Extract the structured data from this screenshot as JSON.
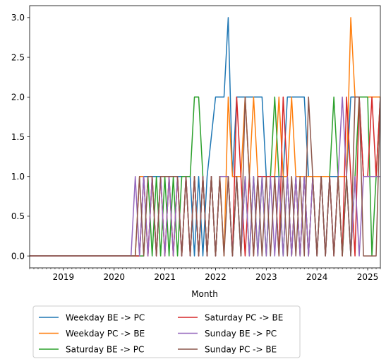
{
  "chart_data": {
    "type": "line",
    "title": "",
    "xlabel": "Month",
    "ylabel": "",
    "xlim": [
      "2018-05",
      "2025-04"
    ],
    "ylim": [
      -0.15,
      3.15
    ],
    "x_ticks": [
      {
        "date": "2019-01",
        "label": "2019"
      },
      {
        "date": "2020-01",
        "label": "2020"
      },
      {
        "date": "2021-01",
        "label": "2021"
      },
      {
        "date": "2022-01",
        "label": "2022"
      },
      {
        "date": "2023-01",
        "label": "2023"
      },
      {
        "date": "2024-01",
        "label": "2024"
      },
      {
        "date": "2025-01",
        "label": "2025"
      }
    ],
    "y_ticks": [
      {
        "value": 0.0,
        "label": "0.0"
      },
      {
        "value": 0.5,
        "label": "0.5"
      },
      {
        "value": 1.0,
        "label": "1.0"
      },
      {
        "value": 1.5,
        "label": "1.5"
      },
      {
        "value": 2.0,
        "label": "2.0"
      },
      {
        "value": 2.5,
        "label": "2.5"
      },
      {
        "value": 3.0,
        "label": "3.0"
      }
    ],
    "grid": false,
    "legend": {
      "position": "below",
      "columns": 2
    },
    "series": [
      {
        "name": "Weekday BE -> PC",
        "color": "#1f77b4",
        "points": [
          [
            "2018-05",
            0
          ],
          [
            "2020-07",
            0
          ],
          [
            "2020-08",
            1
          ],
          [
            "2021-07",
            1
          ],
          [
            "2021-08",
            0
          ],
          [
            "2021-09",
            1
          ],
          [
            "2021-10",
            0
          ],
          [
            "2021-11",
            1
          ],
          [
            "2022-01",
            2
          ],
          [
            "2022-03",
            2
          ],
          [
            "2022-04",
            3
          ],
          [
            "2022-05",
            1
          ],
          [
            "2022-06",
            2
          ],
          [
            "2022-12",
            2
          ],
          [
            "2023-01",
            1
          ],
          [
            "2023-05",
            1
          ],
          [
            "2023-06",
            2
          ],
          [
            "2023-10",
            2
          ],
          [
            "2023-11",
            1
          ],
          [
            "2024-08",
            1
          ],
          [
            "2024-09",
            2
          ],
          [
            "2024-11",
            2
          ],
          [
            "2024-12",
            1
          ],
          [
            "2025-04",
            1
          ]
        ]
      },
      {
        "name": "Weekday PC -> BE",
        "color": "#ff7f0e",
        "points": [
          [
            "2018-05",
            0
          ],
          [
            "2020-06",
            0
          ],
          [
            "2020-07",
            1
          ],
          [
            "2020-08",
            1
          ],
          [
            "2020-09",
            0
          ],
          [
            "2020-10",
            1
          ],
          [
            "2020-11",
            0
          ],
          [
            "2020-12",
            1
          ],
          [
            "2021-01",
            0
          ],
          [
            "2021-02",
            1
          ],
          [
            "2021-03",
            0
          ],
          [
            "2021-04",
            1
          ],
          [
            "2021-05",
            0
          ],
          [
            "2021-06",
            1
          ],
          [
            "2021-07",
            0
          ],
          [
            "2021-08",
            1
          ],
          [
            "2021-09",
            0
          ],
          [
            "2021-10",
            1
          ],
          [
            "2021-11",
            0
          ],
          [
            "2021-12",
            1
          ],
          [
            "2022-01",
            0
          ],
          [
            "2022-02",
            1
          ],
          [
            "2022-03",
            0
          ],
          [
            "2022-04",
            2
          ],
          [
            "2022-05",
            1
          ],
          [
            "2022-07",
            1
          ],
          [
            "2022-08",
            2
          ],
          [
            "2022-09",
            1
          ],
          [
            "2022-10",
            2
          ],
          [
            "2022-11",
            1
          ],
          [
            "2023-03",
            1
          ],
          [
            "2023-04",
            2
          ],
          [
            "2023-05",
            1
          ],
          [
            "2023-06",
            1
          ],
          [
            "2023-07",
            2
          ],
          [
            "2023-08",
            1
          ],
          [
            "2024-04",
            1
          ],
          [
            "2024-05",
            0
          ],
          [
            "2024-06",
            1
          ],
          [
            "2024-08",
            1
          ],
          [
            "2024-09",
            3
          ],
          [
            "2024-10",
            2
          ],
          [
            "2025-04",
            2
          ]
        ]
      },
      {
        "name": "Saturday BE -> PC",
        "color": "#2ca02c",
        "points": [
          [
            "2018-05",
            0
          ],
          [
            "2020-08",
            0
          ],
          [
            "2020-09",
            1
          ],
          [
            "2020-10",
            0
          ],
          [
            "2020-11",
            1
          ],
          [
            "2020-12",
            0
          ],
          [
            "2021-01",
            1
          ],
          [
            "2021-02",
            0
          ],
          [
            "2021-03",
            1
          ],
          [
            "2021-04",
            0
          ],
          [
            "2021-05",
            1
          ],
          [
            "2021-07",
            1
          ],
          [
            "2021-08",
            2
          ],
          [
            "2021-09",
            2
          ],
          [
            "2021-10",
            1
          ],
          [
            "2021-11",
            0
          ],
          [
            "2021-12",
            1
          ],
          [
            "2022-01",
            0
          ],
          [
            "2022-02",
            1
          ],
          [
            "2022-04",
            1
          ],
          [
            "2022-05",
            0
          ],
          [
            "2022-06",
            1
          ],
          [
            "2022-07",
            0
          ],
          [
            "2022-08",
            1
          ],
          [
            "2022-09",
            0
          ],
          [
            "2022-10",
            1
          ],
          [
            "2022-11",
            0
          ],
          [
            "2022-12",
            1
          ],
          [
            "2023-01",
            0
          ],
          [
            "2023-02",
            1
          ],
          [
            "2023-03",
            2
          ],
          [
            "2023-04",
            1
          ],
          [
            "2023-05",
            0
          ],
          [
            "2023-06",
            1
          ],
          [
            "2023-07",
            0
          ],
          [
            "2023-08",
            1
          ],
          [
            "2023-09",
            0
          ],
          [
            "2023-10",
            1
          ],
          [
            "2023-11",
            0
          ],
          [
            "2023-12",
            1
          ],
          [
            "2024-01",
            0
          ],
          [
            "2024-02",
            1
          ],
          [
            "2024-03",
            0
          ],
          [
            "2024-04",
            1
          ],
          [
            "2024-05",
            2
          ],
          [
            "2024-06",
            1
          ],
          [
            "2024-07",
            0
          ],
          [
            "2024-08",
            1
          ],
          [
            "2024-09",
            0
          ],
          [
            "2024-10",
            1
          ],
          [
            "2024-11",
            2
          ],
          [
            "2025-01",
            2
          ],
          [
            "2025-02",
            0
          ],
          [
            "2025-03",
            1
          ],
          [
            "2025-04",
            2
          ]
        ]
      },
      {
        "name": "Saturday PC -> BE",
        "color": "#d62728",
        "points": [
          [
            "2018-05",
            0
          ],
          [
            "2020-07",
            0
          ],
          [
            "2020-08",
            1
          ],
          [
            "2020-09",
            0
          ],
          [
            "2020-10",
            1
          ],
          [
            "2020-11",
            0
          ],
          [
            "2020-12",
            1
          ],
          [
            "2021-01",
            0
          ],
          [
            "2021-02",
            1
          ],
          [
            "2021-03",
            0
          ],
          [
            "2021-04",
            1
          ],
          [
            "2021-05",
            0
          ],
          [
            "2021-06",
            1
          ],
          [
            "2021-07",
            0
          ],
          [
            "2021-08",
            1
          ],
          [
            "2021-09",
            0
          ],
          [
            "2021-10",
            1
          ],
          [
            "2021-11",
            0
          ],
          [
            "2021-12",
            1
          ],
          [
            "2022-01",
            0
          ],
          [
            "2022-02",
            1
          ],
          [
            "2022-04",
            1
          ],
          [
            "2022-05",
            0
          ],
          [
            "2022-06",
            2
          ],
          [
            "2022-07",
            1
          ],
          [
            "2022-08",
            0
          ],
          [
            "2022-09",
            1
          ],
          [
            "2022-10",
            0
          ],
          [
            "2022-11",
            1
          ],
          [
            "2023-03",
            1
          ],
          [
            "2023-04",
            0
          ],
          [
            "2023-05",
            2
          ],
          [
            "2023-06",
            1
          ],
          [
            "2023-07",
            0
          ],
          [
            "2023-08",
            1
          ],
          [
            "2023-09",
            0
          ],
          [
            "2023-10",
            1
          ],
          [
            "2023-11",
            0
          ],
          [
            "2023-12",
            1
          ],
          [
            "2024-01",
            0
          ],
          [
            "2024-02",
            1
          ],
          [
            "2024-03",
            0
          ],
          [
            "2024-04",
            1
          ],
          [
            "2024-05",
            0
          ],
          [
            "2024-06",
            1
          ],
          [
            "2024-07",
            0
          ],
          [
            "2024-08",
            2
          ],
          [
            "2024-09",
            1
          ],
          [
            "2024-10",
            0
          ],
          [
            "2024-11",
            2
          ],
          [
            "2024-12",
            1
          ],
          [
            "2025-01",
            1
          ],
          [
            "2025-02",
            2
          ],
          [
            "2025-03",
            1
          ],
          [
            "2025-04",
            2
          ]
        ]
      },
      {
        "name": "Sunday BE -> PC",
        "color": "#9467bd",
        "points": [
          [
            "2018-05",
            0
          ],
          [
            "2020-05",
            0
          ],
          [
            "2020-06",
            1
          ],
          [
            "2020-07",
            0
          ],
          [
            "2020-08",
            1
          ],
          [
            "2020-09",
            0
          ],
          [
            "2020-10",
            1
          ],
          [
            "2020-11",
            0
          ],
          [
            "2020-12",
            1
          ],
          [
            "2021-01",
            0
          ],
          [
            "2021-02",
            1
          ],
          [
            "2021-03",
            0
          ],
          [
            "2021-04",
            1
          ],
          [
            "2021-05",
            0
          ],
          [
            "2021-06",
            1
          ],
          [
            "2021-07",
            0
          ],
          [
            "2021-08",
            1
          ],
          [
            "2021-09",
            0
          ],
          [
            "2021-10",
            1
          ],
          [
            "2021-11",
            0
          ],
          [
            "2021-12",
            1
          ],
          [
            "2022-01",
            0
          ],
          [
            "2022-02",
            1
          ],
          [
            "2022-04",
            1
          ],
          [
            "2022-05",
            0
          ],
          [
            "2022-06",
            1
          ],
          [
            "2022-07",
            0
          ],
          [
            "2022-08",
            1
          ],
          [
            "2022-09",
            0
          ],
          [
            "2022-10",
            1
          ],
          [
            "2022-11",
            0
          ],
          [
            "2022-12",
            1
          ],
          [
            "2023-01",
            0
          ],
          [
            "2023-02",
            1
          ],
          [
            "2023-03",
            0
          ],
          [
            "2023-04",
            1
          ],
          [
            "2023-05",
            0
          ],
          [
            "2023-06",
            1
          ],
          [
            "2023-07",
            0
          ],
          [
            "2023-08",
            1
          ],
          [
            "2023-09",
            0
          ],
          [
            "2023-10",
            1
          ],
          [
            "2023-11",
            0
          ],
          [
            "2023-12",
            1
          ],
          [
            "2024-01",
            0
          ],
          [
            "2024-02",
            1
          ],
          [
            "2024-03",
            0
          ],
          [
            "2024-04",
            1
          ],
          [
            "2024-05",
            0
          ],
          [
            "2024-06",
            1
          ],
          [
            "2024-07",
            2
          ],
          [
            "2024-08",
            1
          ],
          [
            "2024-09",
            0
          ],
          [
            "2024-10",
            1
          ],
          [
            "2024-11",
            0
          ],
          [
            "2024-12",
            1
          ],
          [
            "2025-04",
            1
          ]
        ]
      },
      {
        "name": "Sunday PC -> BE",
        "color": "#8c564b",
        "points": [
          [
            "2018-05",
            0
          ],
          [
            "2020-06",
            0
          ],
          [
            "2020-07",
            1
          ],
          [
            "2020-08",
            0
          ],
          [
            "2020-09",
            1
          ],
          [
            "2020-10",
            1
          ],
          [
            "2020-11",
            0
          ],
          [
            "2020-12",
            1
          ],
          [
            "2021-04",
            1
          ],
          [
            "2021-05",
            0
          ],
          [
            "2021-06",
            1
          ],
          [
            "2021-07",
            0
          ],
          [
            "2021-08",
            1
          ],
          [
            "2021-09",
            0
          ],
          [
            "2021-10",
            1
          ],
          [
            "2021-11",
            0
          ],
          [
            "2021-12",
            1
          ],
          [
            "2022-01",
            0
          ],
          [
            "2022-02",
            1
          ],
          [
            "2022-03",
            0
          ],
          [
            "2022-04",
            1
          ],
          [
            "2022-05",
            0
          ],
          [
            "2022-06",
            1
          ],
          [
            "2022-07",
            0
          ],
          [
            "2022-08",
            2
          ],
          [
            "2022-09",
            1
          ],
          [
            "2022-10",
            0
          ],
          [
            "2022-11",
            1
          ],
          [
            "2022-12",
            0
          ],
          [
            "2023-01",
            1
          ],
          [
            "2023-02",
            0
          ],
          [
            "2023-03",
            1
          ],
          [
            "2023-04",
            0
          ],
          [
            "2023-05",
            1
          ],
          [
            "2023-06",
            0
          ],
          [
            "2023-07",
            1
          ],
          [
            "2023-08",
            0
          ],
          [
            "2023-09",
            1
          ],
          [
            "2023-10",
            0
          ],
          [
            "2023-11",
            2
          ],
          [
            "2023-12",
            1
          ],
          [
            "2024-01",
            0
          ],
          [
            "2024-02",
            1
          ],
          [
            "2024-03",
            0
          ],
          [
            "2024-04",
            1
          ],
          [
            "2024-05",
            0
          ],
          [
            "2024-06",
            1
          ],
          [
            "2024-07",
            0
          ],
          [
            "2024-08",
            1
          ],
          [
            "2024-09",
            0
          ],
          [
            "2024-10",
            2
          ],
          [
            "2024-11",
            2
          ],
          [
            "2024-12",
            0
          ],
          [
            "2025-01",
            0
          ],
          [
            "2025-03",
            0
          ],
          [
            "2025-04",
            2
          ]
        ]
      }
    ]
  }
}
